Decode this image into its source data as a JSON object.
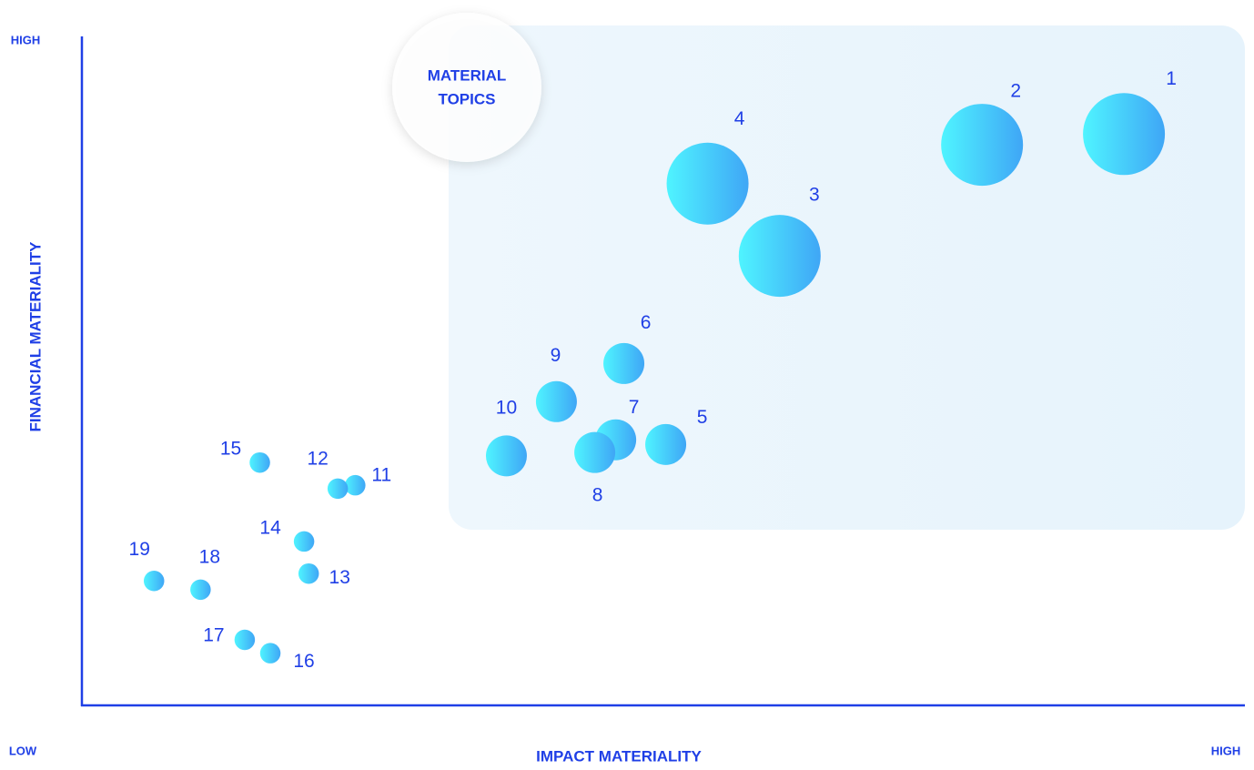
{
  "chart_data": {
    "type": "scatter",
    "x_label": "IMPACT MATERIALITY",
    "y_label": "FINANCIAL MATERIALITY",
    "x_low_label": "LOW",
    "x_high_label": "HIGH",
    "y_high_label": "HIGH",
    "annotation": [
      "MATERIAL",
      "TOPICS"
    ],
    "xlim": [
      0,
      100
    ],
    "ylim": [
      0,
      100
    ],
    "colors": [
      "#4ff4ff",
      "#3fa6f6"
    ],
    "axis_color": "#1f3fe6",
    "labels": [
      "1",
      "2",
      "3",
      "4",
      "5",
      "6",
      "7",
      "8",
      "9",
      "10",
      "11",
      "12",
      "13",
      "14",
      "15",
      "16",
      "17",
      "18",
      "19"
    ],
    "x": [
      89.6,
      77.4,
      60.0,
      53.8,
      50.2,
      46.6,
      45.9,
      44.1,
      40.8,
      36.5,
      23.5,
      22.0,
      19.5,
      19.1,
      15.3,
      16.2,
      14.0,
      10.2,
      6.2
    ],
    "y": [
      85.4,
      83.8,
      67.2,
      78.0,
      39.0,
      51.1,
      39.7,
      37.8,
      45.4,
      37.3,
      32.9,
      32.4,
      19.7,
      24.5,
      36.3,
      7.8,
      9.8,
      17.3,
      18.6
    ],
    "sizes": [
      4,
      4,
      4,
      4,
      2,
      2,
      2,
      2,
      2,
      2,
      1,
      1,
      1,
      1,
      1,
      1,
      1,
      1,
      1
    ]
  }
}
